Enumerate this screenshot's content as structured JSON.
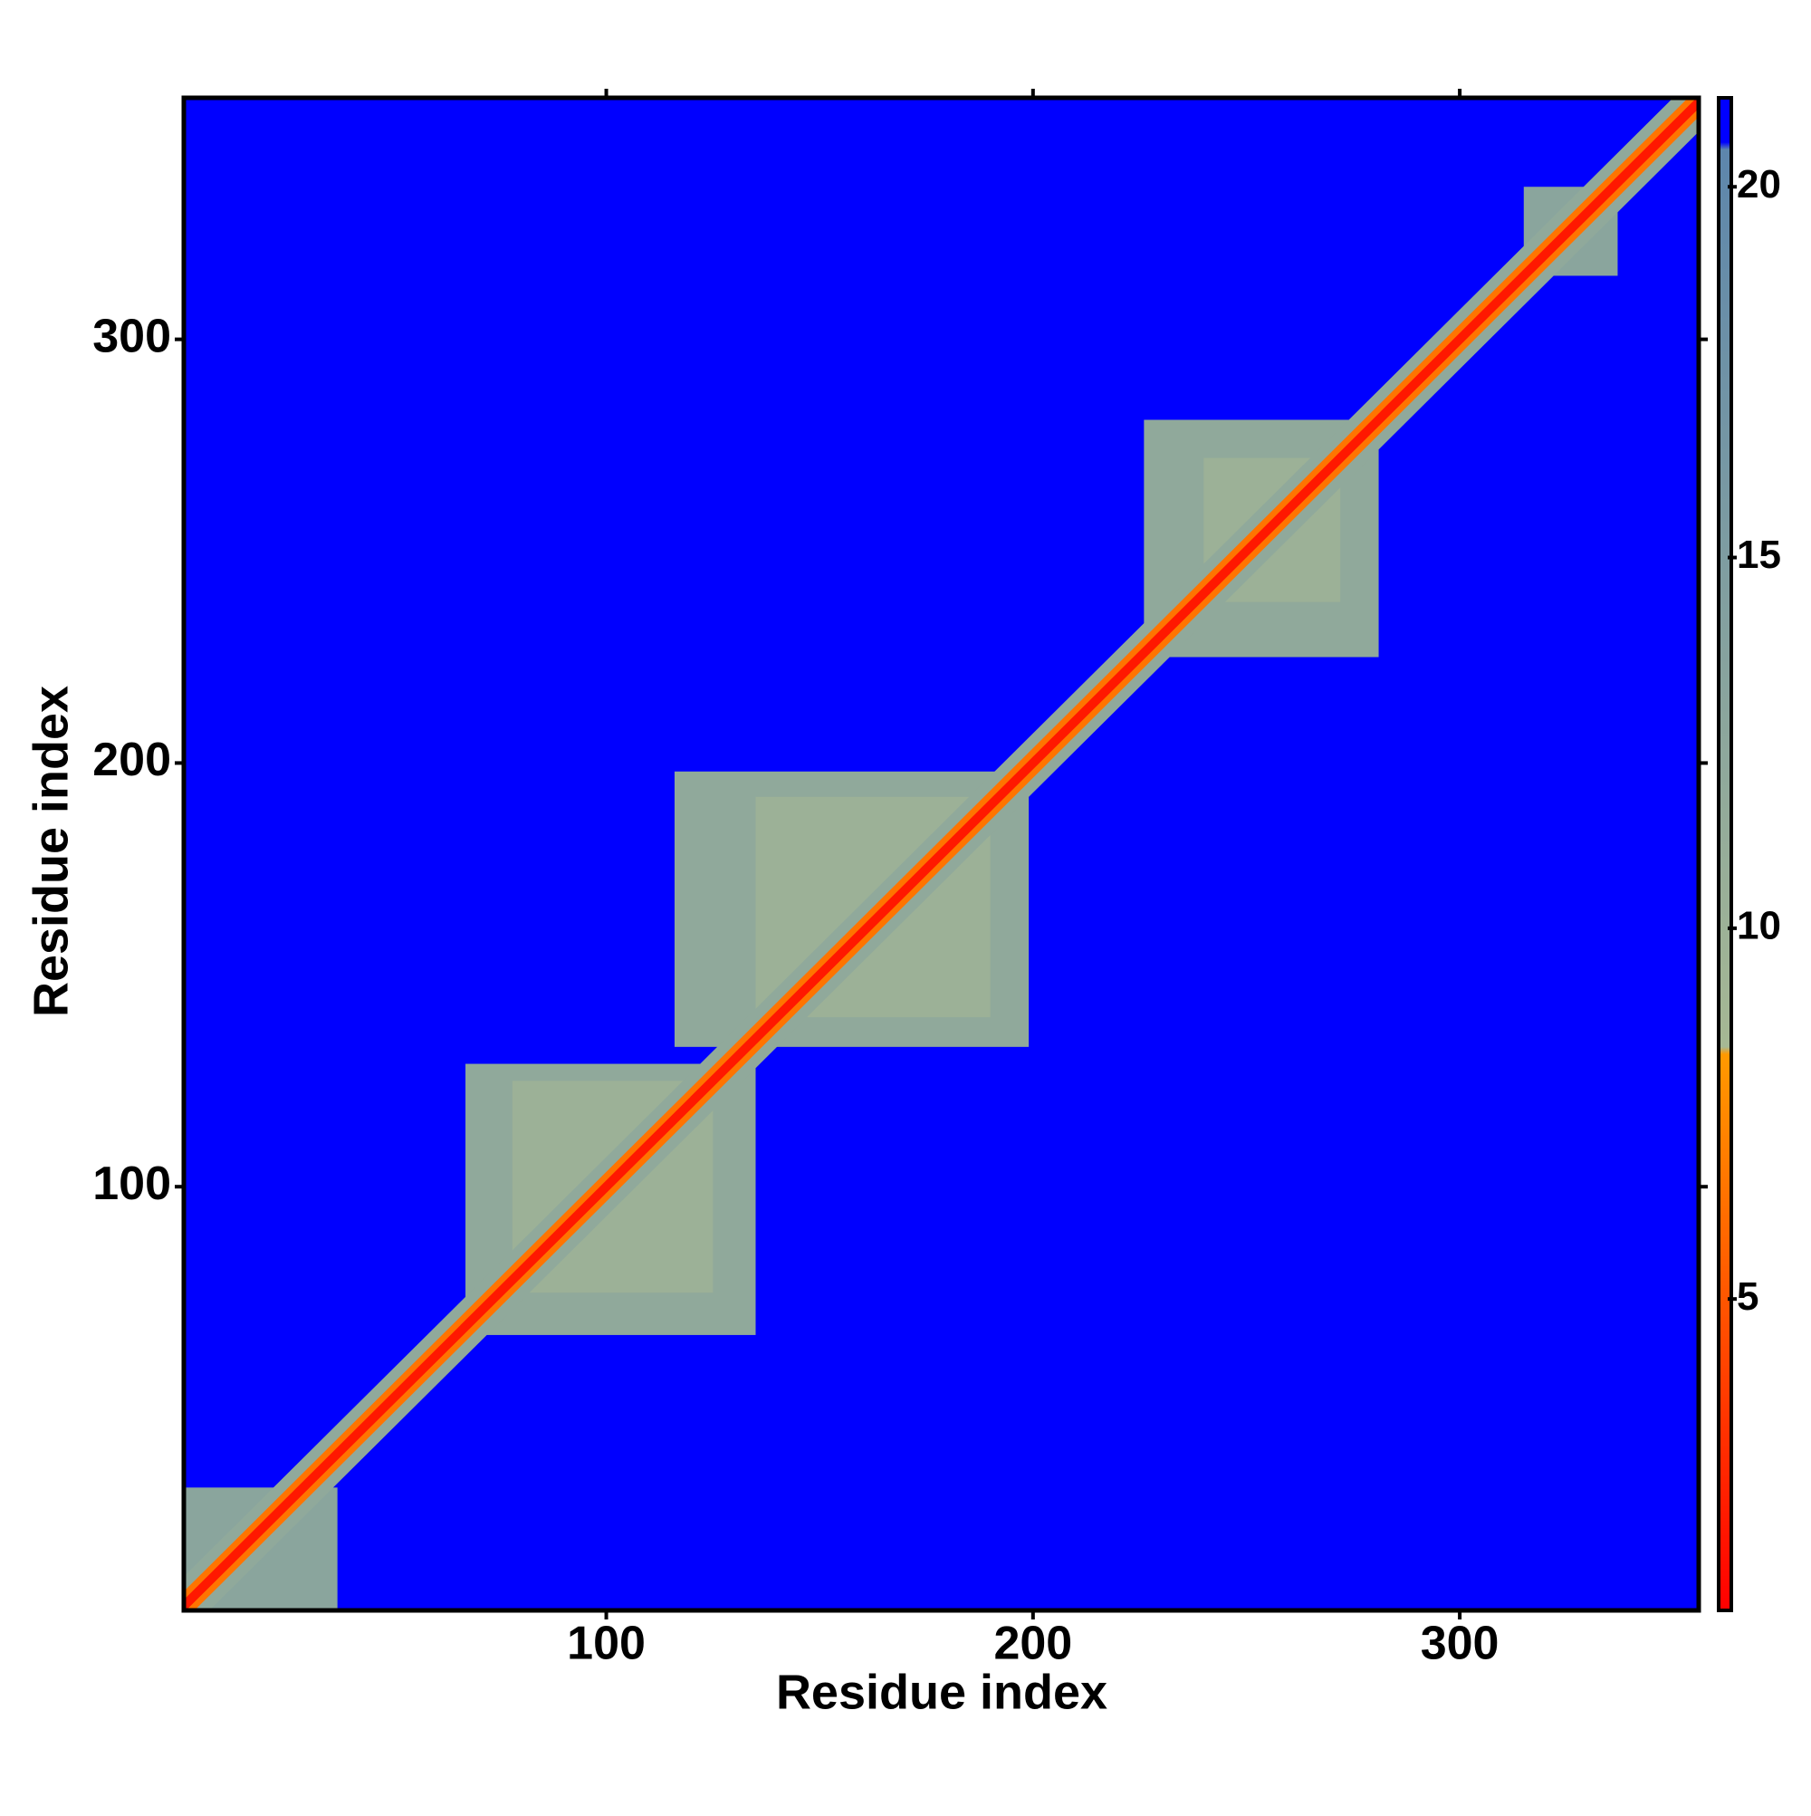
{
  "chart_data": {
    "type": "heatmap",
    "xlabel": "Residue index",
    "ylabel": "Residue index",
    "xlim": [
      1,
      356
    ],
    "ylim": [
      0,
      357
    ],
    "xticks": [
      100,
      200,
      300
    ],
    "yticks": [
      100,
      200,
      300
    ],
    "fill_value": 21,
    "colorscale": [
      [
        0.8,
        "#ff0000"
      ],
      [
        8.3,
        "#ff9900"
      ],
      [
        8.4,
        "#a6b894"
      ],
      [
        20.5,
        "#5d86ac"
      ],
      [
        20.6,
        "#0000ff"
      ],
      [
        21.2,
        "#0000ff"
      ]
    ],
    "colorbar": {
      "lim": [
        0.8,
        21.2
      ],
      "ticks": [
        5,
        10,
        15,
        20
      ]
    },
    "blocks": [
      {
        "x": [
          67,
          135
        ],
        "y": [
          65,
          129
        ],
        "value": 12
      },
      {
        "x": [
          78,
          125
        ],
        "y": [
          75,
          125
        ],
        "value": 10
      },
      {
        "x": [
          116,
          199
        ],
        "y": [
          133,
          198
        ],
        "value": 12
      },
      {
        "x": [
          135,
          190
        ],
        "y": [
          140,
          192
        ],
        "value": 10
      },
      {
        "x": [
          226,
          281
        ],
        "y": [
          225,
          281
        ],
        "value": 12
      },
      {
        "x": [
          240,
          272
        ],
        "y": [
          238,
          272
        ],
        "value": 10
      },
      {
        "x": [
          1,
          37
        ],
        "y": [
          0,
          29
        ],
        "value": 13
      },
      {
        "x": [
          315,
          337
        ],
        "y": [
          315,
          336
        ],
        "value": 13
      }
    ],
    "diagonal": {
      "x": [
        1,
        356
      ],
      "bands": [
        {
          "offset": 7,
          "value": 12
        },
        {
          "offset": 3.5,
          "value": 6.5
        },
        {
          "offset": 1.5,
          "value": 2
        }
      ]
    }
  }
}
